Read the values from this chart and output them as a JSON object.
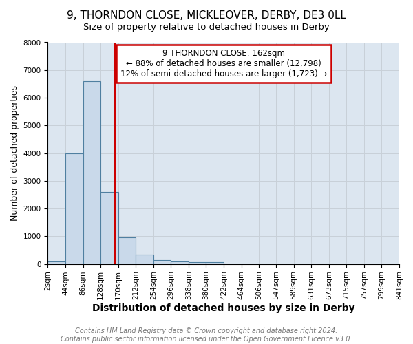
{
  "title": "9, THORNDON CLOSE, MICKLEOVER, DERBY, DE3 0LL",
  "subtitle": "Size of property relative to detached houses in Derby",
  "xlabel": "Distribution of detached houses by size in Derby",
  "ylabel": "Number of detached properties",
  "bar_values": [
    80,
    4000,
    6600,
    2600,
    950,
    330,
    130,
    90,
    60,
    60,
    0,
    0,
    0,
    0,
    0,
    0,
    0,
    0,
    0,
    0
  ],
  "bin_edges": [
    2,
    44,
    86,
    128,
    170,
    212,
    254,
    296,
    338,
    380,
    422,
    464,
    506,
    547,
    589,
    631,
    673,
    715,
    757,
    799,
    841
  ],
  "tick_labels": [
    "2sqm",
    "44sqm",
    "86sqm",
    "128sqm",
    "170sqm",
    "212sqm",
    "254sqm",
    "296sqm",
    "338sqm",
    "380sqm",
    "422sqm",
    "464sqm",
    "506sqm",
    "547sqm",
    "589sqm",
    "631sqm",
    "673sqm",
    "715sqm",
    "757sqm",
    "799sqm",
    "841sqm"
  ],
  "bar_color": "#c9d9ea",
  "bar_edge_color": "#4f7fa0",
  "vline_x": 162,
  "vline_color": "#cc0000",
  "ylim": [
    0,
    8000
  ],
  "yticks": [
    0,
    1000,
    2000,
    3000,
    4000,
    5000,
    6000,
    7000,
    8000
  ],
  "annotation_box_text": "9 THORNDON CLOSE: 162sqm\n← 88% of detached houses are smaller (12,798)\n12% of semi-detached houses are larger (1,723) →",
  "annotation_box_color": "#ffffff",
  "annotation_box_edge_color": "#cc0000",
  "footer_text": "Contains HM Land Registry data © Crown copyright and database right 2024.\nContains public sector information licensed under the Open Government Licence v3.0.",
  "title_fontsize": 11,
  "subtitle_fontsize": 9.5,
  "xlabel_fontsize": 10,
  "ylabel_fontsize": 9,
  "tick_label_fontsize": 7.5,
  "annot_fontsize": 8.5,
  "footer_fontsize": 7,
  "grid_color": "#c8d0d8",
  "plot_bg_color": "#dce6f0",
  "fig_bg_color": "#ffffff"
}
